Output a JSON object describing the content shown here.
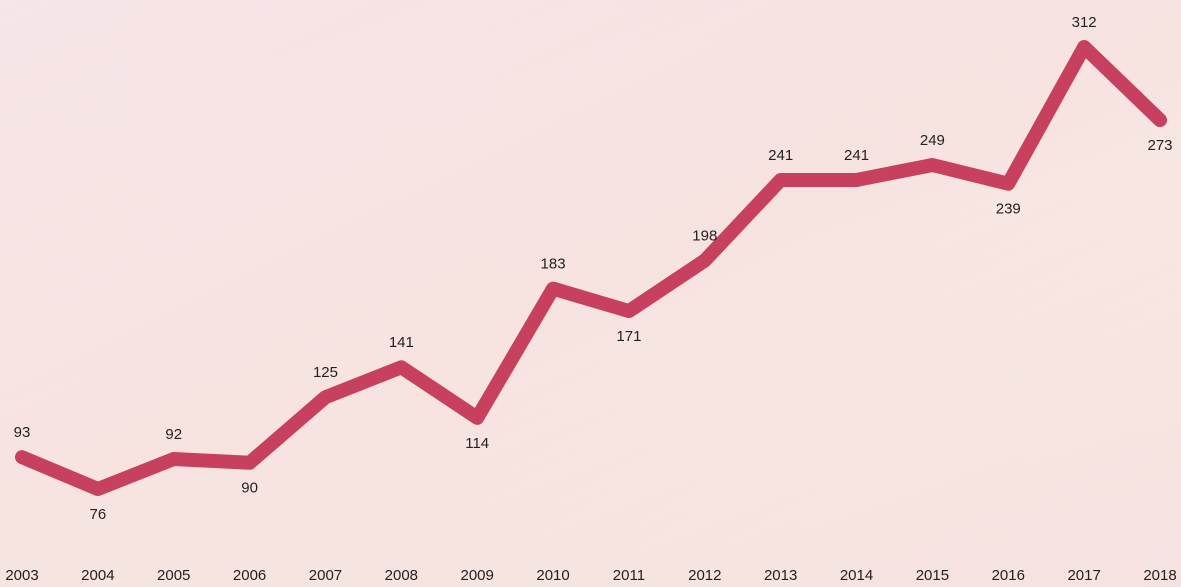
{
  "chart_data": {
    "type": "line",
    "categories": [
      "2003",
      "2004",
      "2005",
      "2006",
      "2007",
      "2008",
      "2009",
      "2010",
      "2011",
      "2012",
      "2013",
      "2014",
      "2015",
      "2016",
      "2017",
      "2018"
    ],
    "series": [
      {
        "color": "#c7415f",
        "values": [
          93,
          76,
          92,
          90,
          125,
          141,
          114,
          183,
          171,
          198,
          241,
          241,
          249,
          239,
          312,
          273
        ]
      }
    ]
  }
}
